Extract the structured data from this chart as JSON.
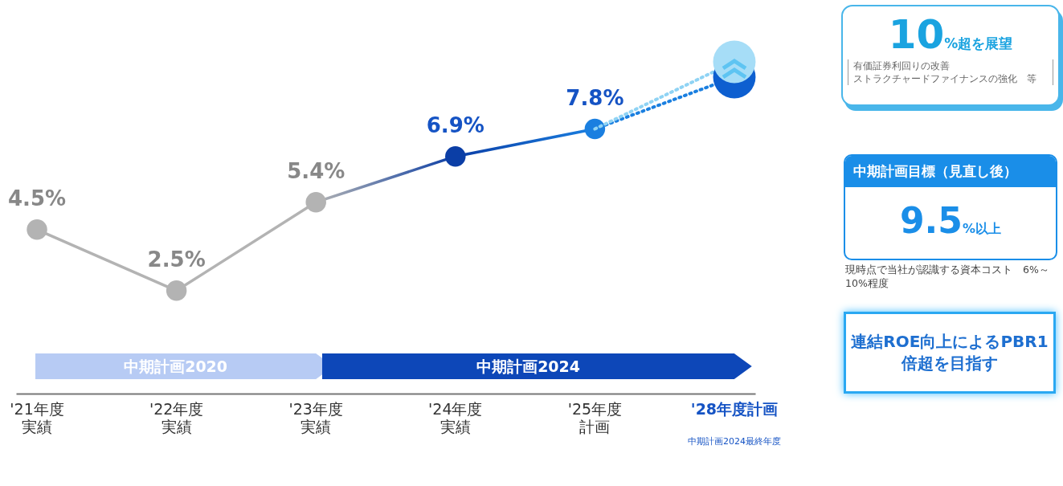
{
  "chart_data": {
    "type": "line",
    "categories": [
      "'21年度実績",
      "'22年度実績",
      "'23年度実績",
      "'24年度実績",
      "'25年度計画",
      "'28年度計画"
    ],
    "series": [
      {
        "values": [
          4.5,
          2.5,
          5.4,
          6.9,
          7.8,
          null
        ],
        "colors": [
          "#b3b3b3",
          "#b3b3b3",
          "#b3b3b3",
          "#0b3ea6",
          "#1a7fe0",
          null
        ],
        "value_labels": [
          "4.5%",
          "2.5%",
          "5.4%",
          "6.9%",
          "7.8%",
          null
        ],
        "marker": "circle"
      },
      {
        "values": [
          null,
          null,
          null,
          null,
          7.8,
          9.5
        ],
        "color": "#1a7fe0",
        "line_style": "dotted"
      },
      {
        "values": [
          null,
          null,
          null,
          null,
          7.8,
          10
        ],
        "color": "#8fd3f4",
        "line_style": "dotted"
      },
      {
        "type": "scatter",
        "values": [
          null,
          null,
          null,
          null,
          null,
          9.5
        ],
        "color": "#0d5fd0"
      },
      {
        "type": "scatter",
        "values": [
          null,
          null,
          null,
          null,
          null,
          10
        ],
        "color": "#a6ddf7"
      }
    ],
    "annotations": [
      "10%超を展望",
      "有価証券利回りの改善",
      "ストラクチャードファイナンスの強化　等",
      "中期計画目標（見直し後）",
      "9.5%以上",
      "現時点で当社が認識する資本コスト　6%～10%程度",
      "連結ROE向上によるPBR1倍超を目指す",
      "中期計画2024最終年度",
      "中期計画2020",
      "中期計画2024"
    ],
    "tick_labels": "x",
    "grid": false
  }
}
